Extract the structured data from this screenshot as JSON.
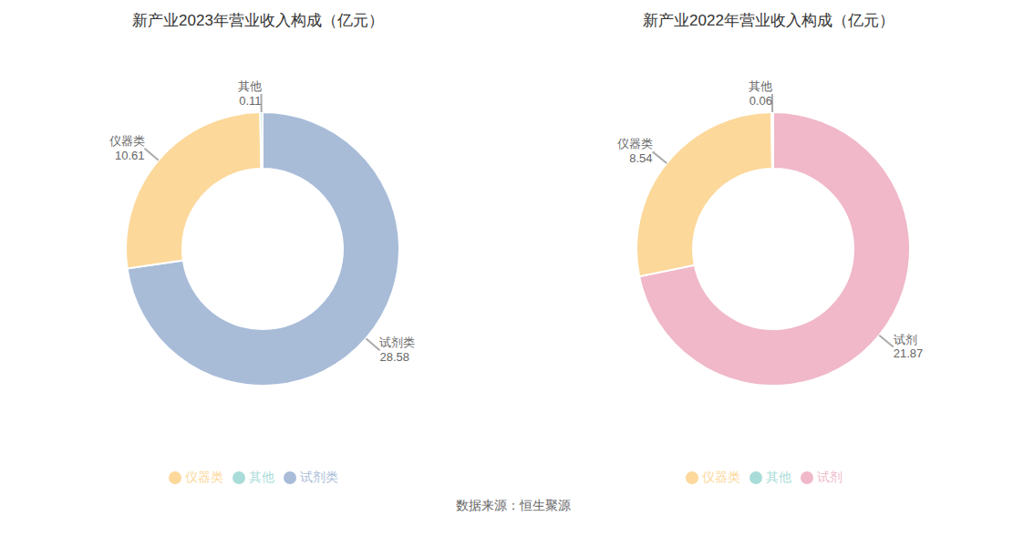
{
  "chart_data": [
    {
      "type": "pie",
      "title": "新产业2023年营业收入构成（亿元）",
      "categories": [
        "试剂类",
        "仪器类",
        "其他"
      ],
      "values": [
        28.58,
        10.61,
        0.11
      ],
      "colors": [
        "#a8bcd8",
        "#fcd89a",
        "#a8dcd8"
      ],
      "data_labels": true,
      "legend": "bottom"
    },
    {
      "type": "pie",
      "title": "新产业2022年营业收入构成（亿元）",
      "categories": [
        "试剂",
        "仪器类",
        "其他"
      ],
      "values": [
        21.87,
        8.54,
        0.06
      ],
      "colors": [
        "#f0b8c8",
        "#fcd89a",
        "#a8dcd8"
      ],
      "data_labels": true,
      "legend": "bottom"
    }
  ],
  "annotations": [
    "数据来源：恒生聚源"
  ]
}
